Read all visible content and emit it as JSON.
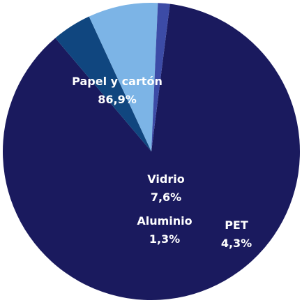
{
  "chart_data": {
    "type": "pie",
    "slices": [
      {
        "label": "Papel y cartón",
        "value": 86.9,
        "display": "86,9%",
        "color": "#1a1a5e"
      },
      {
        "label": "PET",
        "value": 4.3,
        "display": "4,3%",
        "color": "#10467f"
      },
      {
        "label": "Vidrio",
        "value": 7.6,
        "display": "7,6%",
        "color": "#7cb4e6"
      },
      {
        "label": "Aluminio",
        "value": 1.3,
        "display": "1,3%",
        "color": "#3c4ba6"
      }
    ]
  }
}
